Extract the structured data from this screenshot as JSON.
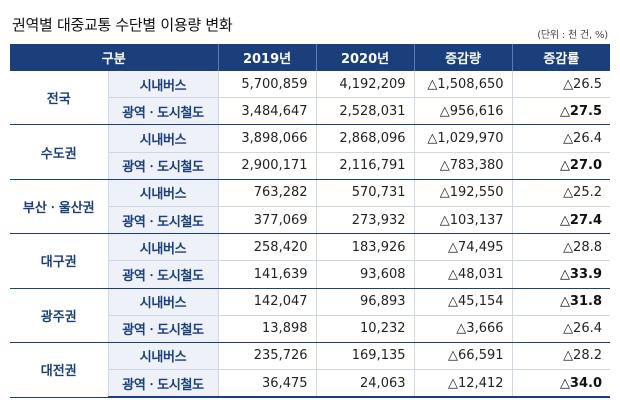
{
  "title": "권역별 대중교통 수단별 이용량 변화",
  "unit": "(단위 : 천 건, %)",
  "header": {
    "category": "구분",
    "y2019": "2019년",
    "y2020": "2020년",
    "diff": "증감량",
    "rate": "증감률"
  },
  "regions": [
    {
      "name": "전국",
      "rows": [
        {
          "mode": "시내버스",
          "y2019": "5,700,859",
          "y2020": "4,192,209",
          "diff": "△1,508,650",
          "rate": "△26.5",
          "rate_bold": false
        },
        {
          "mode": "광역ㆍ도시철도",
          "y2019": "3,484,647",
          "y2020": "2,528,031",
          "diff": "△956,616",
          "rate": "△27.5",
          "rate_bold": true
        }
      ]
    },
    {
      "name": "수도권",
      "rows": [
        {
          "mode": "시내버스",
          "y2019": "3,898,066",
          "y2020": "2,868,096",
          "diff": "△1,029,970",
          "rate": "△26.4",
          "rate_bold": false
        },
        {
          "mode": "광역ㆍ도시철도",
          "y2019": "2,900,171",
          "y2020": "2,116,791",
          "diff": "△783,380",
          "rate": "△27.0",
          "rate_bold": true
        }
      ]
    },
    {
      "name": "부산ㆍ울산권",
      "rows": [
        {
          "mode": "시내버스",
          "y2019": "763,282",
          "y2020": "570,731",
          "diff": "△192,550",
          "rate": "△25.2",
          "rate_bold": false
        },
        {
          "mode": "광역ㆍ도시철도",
          "y2019": "377,069",
          "y2020": "273,932",
          "diff": "△103,137",
          "rate": "△27.4",
          "rate_bold": true
        }
      ]
    },
    {
      "name": "대구권",
      "rows": [
        {
          "mode": "시내버스",
          "y2019": "258,420",
          "y2020": "183,926",
          "diff": "△74,495",
          "rate": "△28.8",
          "rate_bold": false
        },
        {
          "mode": "광역ㆍ도시철도",
          "y2019": "141,639",
          "y2020": "93,608",
          "diff": "△48,031",
          "rate": "△33.9",
          "rate_bold": true
        }
      ]
    },
    {
      "name": "광주권",
      "rows": [
        {
          "mode": "시내버스",
          "y2019": "142,047",
          "y2020": "96,893",
          "diff": "△45,154",
          "rate": "△31.8",
          "rate_bold": true
        },
        {
          "mode": "광역ㆍ도시철도",
          "y2019": "13,898",
          "y2020": "10,232",
          "diff": "△3,666",
          "rate": "△26.4",
          "rate_bold": false
        }
      ]
    },
    {
      "name": "대전권",
      "rows": [
        {
          "mode": "시내버스",
          "y2019": "235,726",
          "y2020": "169,135",
          "diff": "△66,591",
          "rate": "△28.2",
          "rate_bold": false
        },
        {
          "mode": "광역ㆍ도시철도",
          "y2019": "36,475",
          "y2020": "24,063",
          "diff": "△12,412",
          "rate": "△34.0",
          "rate_bold": true
        }
      ]
    }
  ],
  "colors": {
    "header_bg": "#1b3f7a",
    "region_text": "#1b3f7a",
    "mode_bg": "#eef1f7"
  }
}
